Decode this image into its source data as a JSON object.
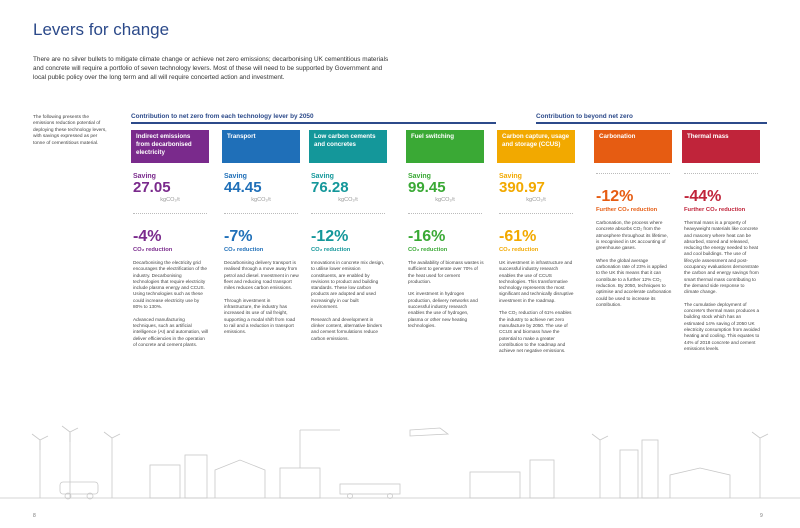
{
  "page": {
    "title": "Levers for change",
    "intro": "There are no silver bullets to mitigate climate change or achieve net zero emissions; decarbonising UK cementitious materials and concrete will require a portfolio of seven technology levers. Most of these will need to be supported by Government and local public policy over the long term and all will require concerted action and investment.",
    "side_note": "The following presents the emissions reduction potential of deploying these technology levers, with savings expressed as per tonne of cementitious material.",
    "band_left": "Contribution to net zero from each technology lever by 2050",
    "band_right": "Contribution to beyond net zero",
    "page_left": "8",
    "page_right": "9"
  },
  "levers": [
    {
      "header": "Indirect emissions from decarbonised electricity",
      "color": "#7a2a8c",
      "saving_label": "Saving",
      "saving_value": "27.05",
      "saving_unit": "kgCO₂/t",
      "pct": "-4%",
      "pct_label": "CO₂ reduction",
      "desc": "Decarbonising the electricity grid encourages the electrification of the industry. Decarbonising technologies that require electricity include plasma energy and CCUS. Using technologies such as these could increase electricity use by 80% to 130%.\n\nAdvanced manufacturing techniques, such as artificial intelligence (AI) and automation, will deliver efficiencies in the operation of concrete and cement plants."
    },
    {
      "header": "Transport",
      "color": "#1f6fb8",
      "saving_label": "Saving",
      "saving_value": "44.45",
      "saving_unit": "kgCO₂/t",
      "pct": "-7%",
      "pct_label": "CO₂ reduction",
      "desc": "Decarbonising delivery transport is realised through a move away from petrol and diesel. Investment in new fleet and reducing road transport miles reduces carbon emissions.\n\nThrough investment in infrastructure, the industry has increased its use of rail freight, supporting a modal shift from road to rail and a reduction in transport emissions."
    },
    {
      "header": "Low carbon cements and concretes",
      "color": "#14979a",
      "saving_label": "Saving",
      "saving_value": "76.28",
      "saving_unit": "kgCO₂/t",
      "pct": "-12%",
      "pct_label": "CO₂ reduction",
      "desc": "Innovations in concrete mix design, to utilise lower emission constituents, are enabled by revisions to product and building standards. These low carbon products are adopted and used increasingly in our built environment.\n\nResearch and development in clinker content, alternative binders and cement formulations reduce carbon emissions."
    },
    {
      "header": "Fuel switching",
      "color": "#3aa935",
      "saving_label": "Saving",
      "saving_value": "99.45",
      "saving_unit": "kgCO₂/t",
      "pct": "-16%",
      "pct_label": "CO₂ reduction",
      "desc": "The availability of biomass wastes is sufficient to generate over 70% of the heat used for cement production.\n\nUK investment in hydrogen production, delivery networks and successful industry research enables the use of hydrogen, plasma or other new heating technologies."
    },
    {
      "header": "Carbon capture, usage and storage (CCUS)",
      "color": "#f2a900",
      "saving_label": "Saving",
      "saving_value": "390.97",
      "saving_unit": "kgCO₂/t",
      "pct": "-61%",
      "pct_label": "CO₂ reduction",
      "desc": "UK investment in infrastructure and successful industry research enables the use of CCUS technologies. This transformative technology represents the most significant and technically disruptive investment in the roadmap.\n\nThe CO₂ reduction of 61% enables the industry to achieve net zero manufacture by 2050. The use of CCUS and biomass have the potential to make a greater contribution to the roadmap and achieve net negative emissions."
    },
    {
      "header": "Carbonation",
      "color": "#e65c12",
      "saving_label": "",
      "saving_value": "",
      "saving_unit": "",
      "pct": "-12%",
      "pct_label": "Further CO₂ reduction",
      "desc": "Carbonation, the process where concrete absorbs CO₂ from the atmosphere throughout its lifetime, is recognised in UK accounting of greenhouse gases.\n\nWhen the global average carbonation rate of 23% is applied to the UK this means that it can contribute to a further 12% CO₂ reduction. By 2050, techniques to optimise and accelerate carbonation could be used to increase its contribution."
    },
    {
      "header": "Thermal mass",
      "color": "#c0243a",
      "saving_label": "",
      "saving_value": "",
      "saving_unit": "",
      "pct": "-44%",
      "pct_label": "Further CO₂ reduction",
      "desc": "Thermal mass is a property of heavyweight materials like concrete and masonry where heat can be absorbed, stored and released, reducing the energy needed to heat and cool buildings. The use of lifecycle assessment and post-occupancy evaluations demonstrate the carbon and energy savings from smart thermal mass contributing to the demand side response to climate change.\n\nThe cumulative deployment of concrete's thermal mass produces a building stock which has an estimated 14% saving of 2050 UK electricity consumption from avoided heating and cooling. This equates to 44% of 2018 concrete and cement emissions levels."
    }
  ]
}
